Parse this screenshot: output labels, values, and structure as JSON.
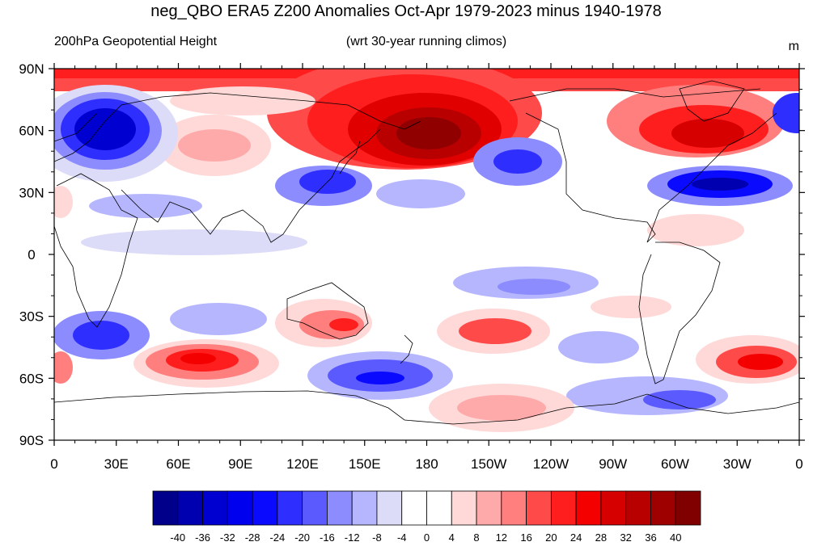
{
  "title": "neg_QBO ERA5 Z200 Anomalies Oct-Apr 1979-2023 minus 1940-1978",
  "left_string": "200hPa Geopotential Height",
  "center_string": "(wrt 30-year running climos)",
  "units": "m",
  "lat_labels": [
    "90N",
    "60N",
    "30N",
    "0",
    "30S",
    "60S",
    "90S"
  ],
  "lon_labels": [
    "0",
    "30E",
    "60E",
    "90E",
    "120E",
    "150E",
    "180",
    "150W",
    "120W",
    "90W",
    "60W",
    "30W",
    "0"
  ],
  "colorbar": {
    "labels": [
      "-40",
      "-36",
      "-32",
      "-28",
      "-24",
      "-20",
      "-16",
      "-12",
      "-8",
      "-4",
      "0",
      "4",
      "8",
      "12",
      "16",
      "20",
      "24",
      "28",
      "32",
      "36",
      "40"
    ],
    "colors": [
      "#00008a",
      "#0000b0",
      "#0000d0",
      "#0000ee",
      "#0a0aff",
      "#2e2eff",
      "#5a5aff",
      "#8c8cff",
      "#b6b6ff",
      "#dcdcf8",
      "#ffffff",
      "#ffffff",
      "#ffd8d8",
      "#ffaaaa",
      "#ff7e7e",
      "#ff4a4a",
      "#ff1e1e",
      "#f40000",
      "#d60000",
      "#b80000",
      "#9e0000",
      "#800000"
    ]
  }
}
